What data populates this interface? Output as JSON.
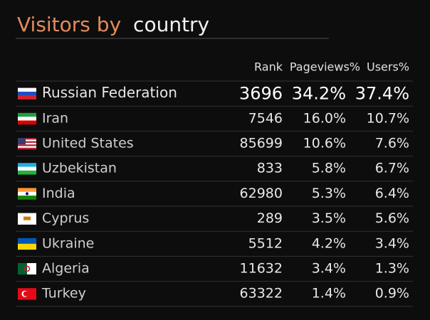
{
  "header": {
    "title_part1": "Visitors by",
    "title_part2": "country"
  },
  "table": {
    "columns": [
      "Rank",
      "Pageviews%",
      "Users%"
    ],
    "rows": [
      [
        "Russian Federation",
        3696,
        "34.2%",
        "37.4%"
      ],
      [
        "Iran",
        7546,
        "16.0%",
        "10.7%"
      ],
      [
        "United States",
        85699,
        "10.6%",
        "7.6%"
      ],
      [
        "Uzbekistan",
        833,
        "5.8%",
        "6.7%"
      ],
      [
        "India",
        62980,
        "5.3%",
        "6.4%"
      ],
      [
        "Cyprus",
        289,
        "3.5%",
        "5.6%"
      ],
      [
        "Ukraine",
        5512,
        "4.2%",
        "3.4%"
      ],
      [
        "Algeria",
        11632,
        "3.4%",
        "1.3%"
      ],
      [
        "Turkey",
        63322,
        "1.4%",
        "0.9%"
      ]
    ]
  }
}
